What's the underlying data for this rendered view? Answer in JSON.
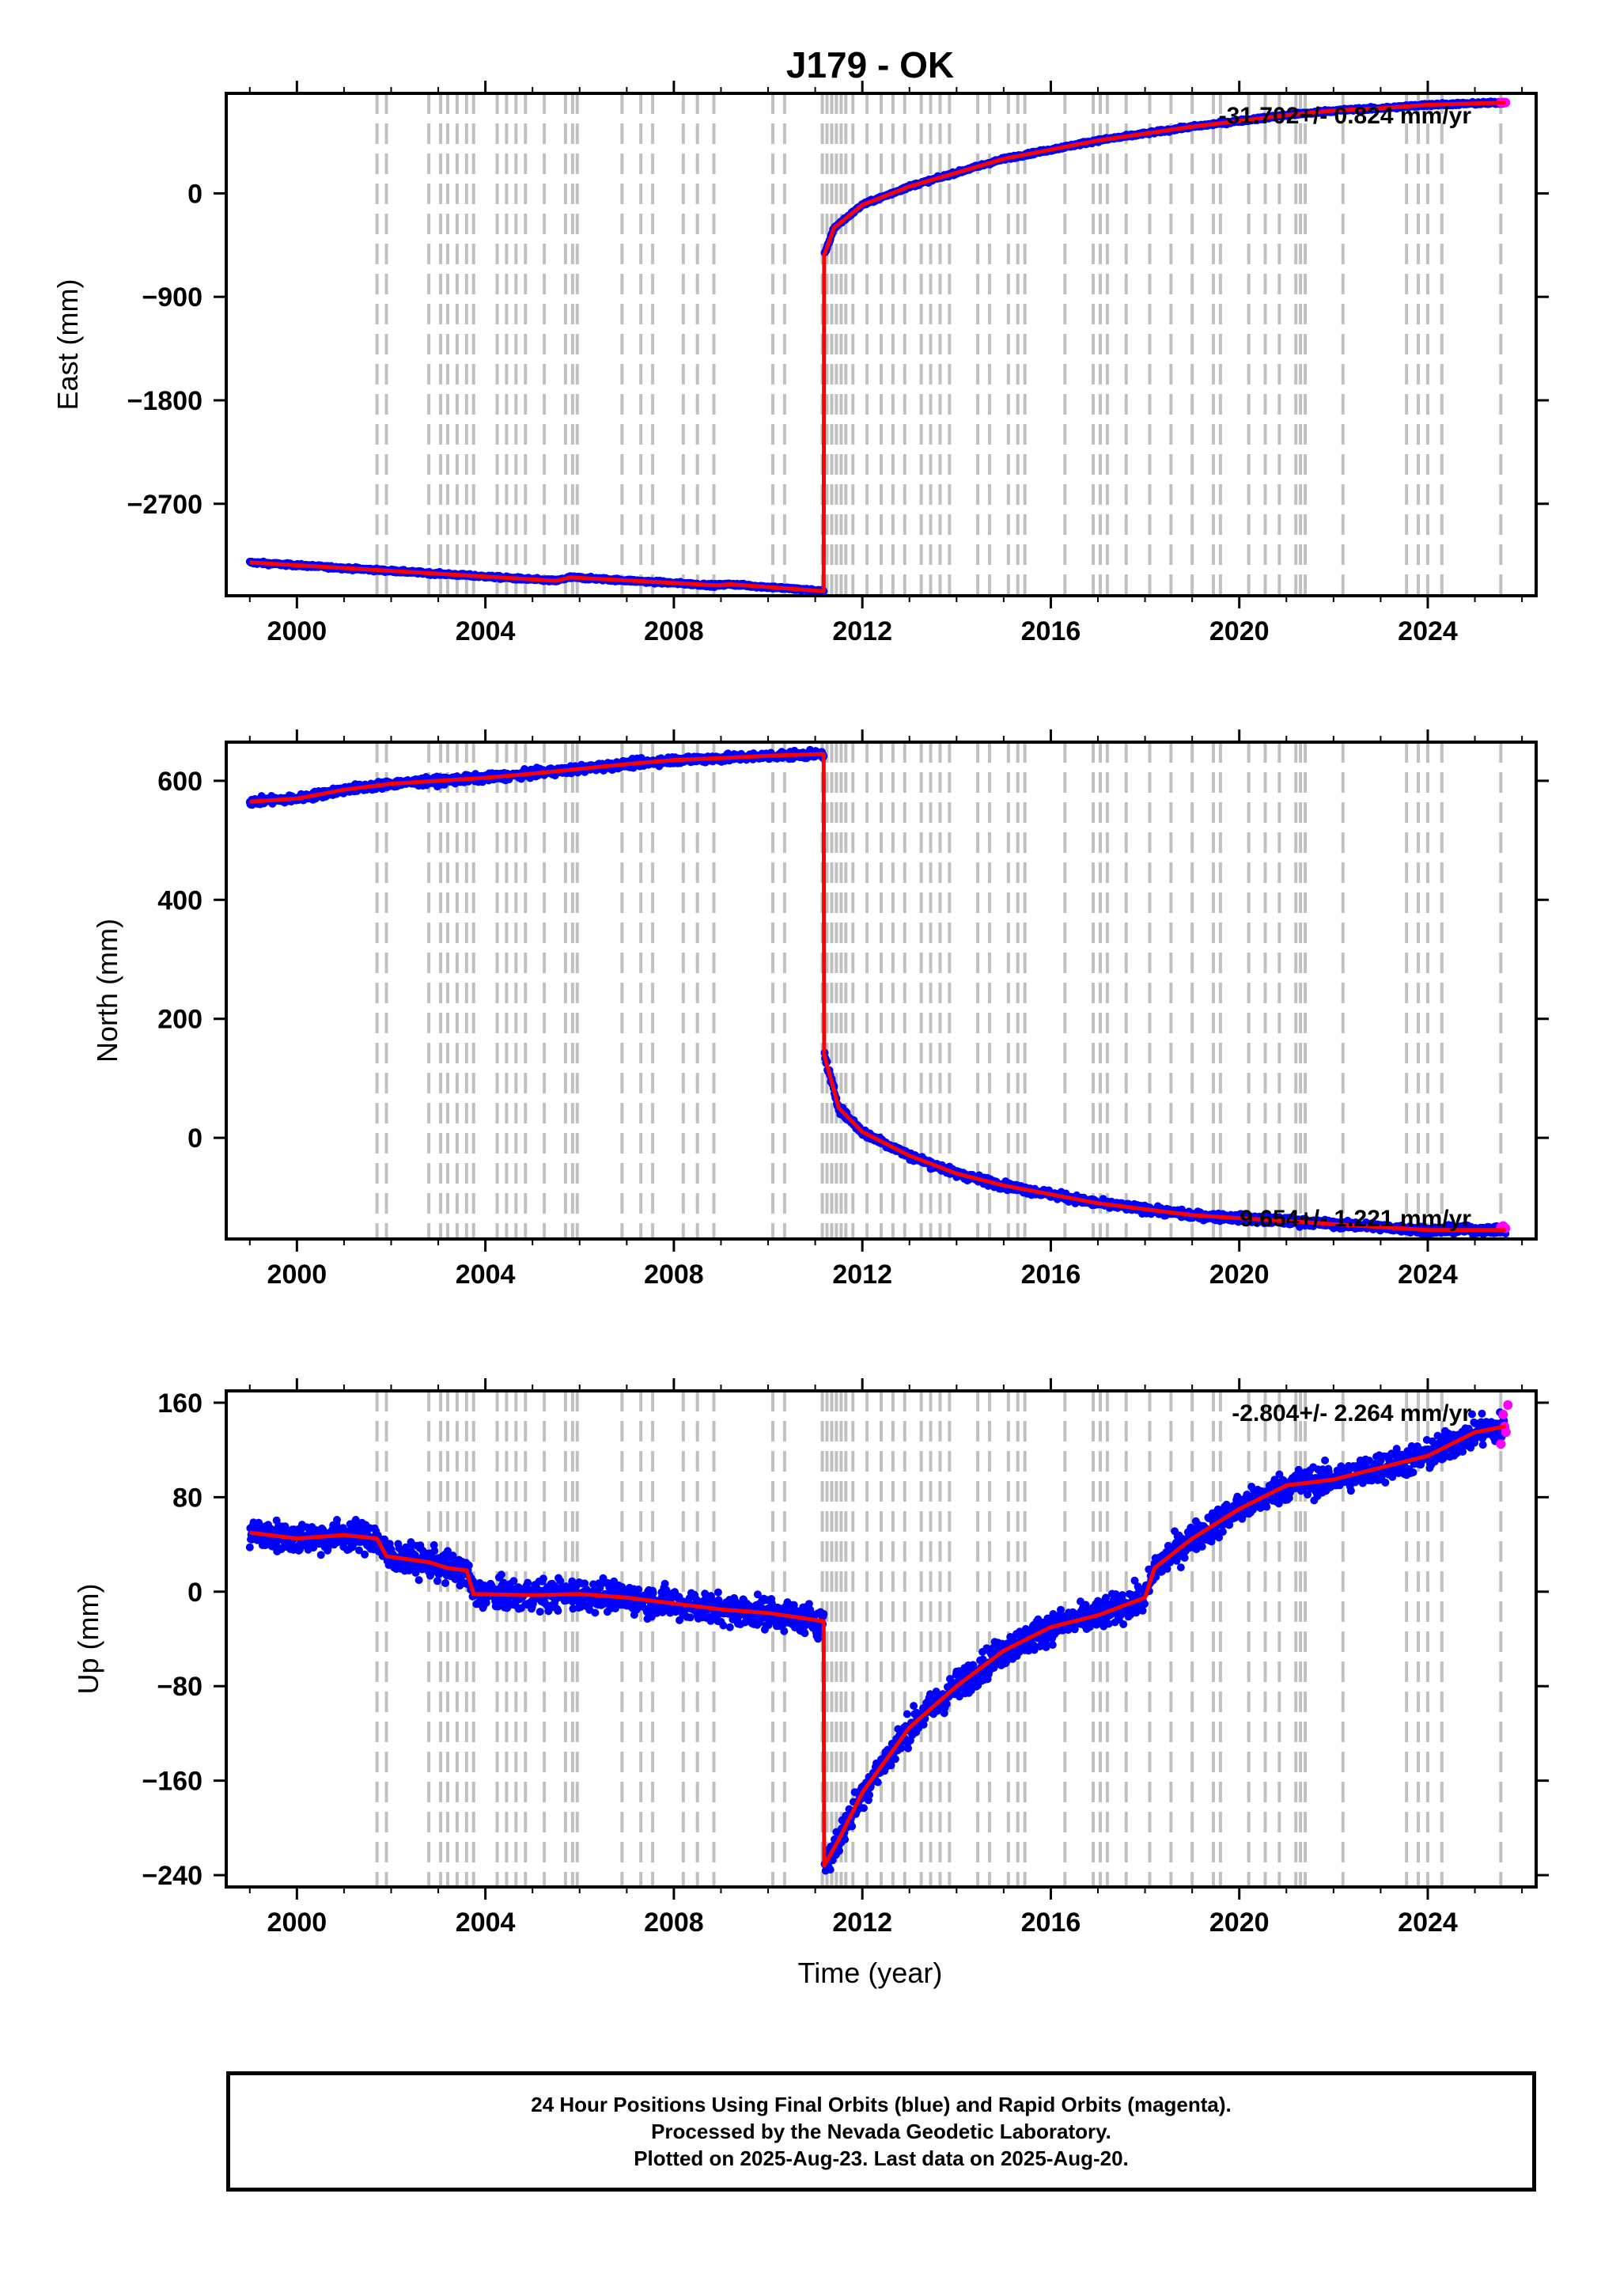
{
  "chart_data": {
    "type": "scatter",
    "title": "J179 - OK",
    "xlabel": "Time (year)",
    "xlim": [
      1998.5,
      2026.3
    ],
    "xticks": [
      2000,
      2004,
      2008,
      2012,
      2016,
      2020,
      2024
    ],
    "event_lines": [
      2001.7,
      2001.9,
      2002.8,
      2003.05,
      2003.2,
      2003.4,
      2003.6,
      2003.75,
      2004.25,
      2004.45,
      2004.65,
      2004.85,
      2005.25,
      2005.7,
      2005.85,
      2005.95,
      2006.9,
      2007.3,
      2007.55,
      2008.2,
      2008.5,
      2008.85,
      2010.1,
      2010.35,
      2011.15,
      2011.25,
      2011.35,
      2011.45,
      2011.55,
      2011.65,
      2011.8,
      2012.1,
      2012.4,
      2012.65,
      2012.9,
      2013.25,
      2013.45,
      2013.65,
      2013.85,
      2014.45,
      2014.7,
      2015.1,
      2015.3,
      2015.45,
      2016.3,
      2016.9,
      2017.05,
      2017.2,
      2017.6,
      2018.1,
      2018.55,
      2019.0,
      2019.45,
      2019.6,
      2020.2,
      2020.55,
      2020.85,
      2021.2,
      2021.3,
      2021.4,
      2022.2,
      2023.55,
      2023.8,
      2024.0,
      2024.3,
      2025.55
    ],
    "panels": [
      {
        "ylabel": "East (mm)",
        "ylim": [
          -3500,
          870
        ],
        "yticks": [
          0,
          -900,
          -1800,
          -2700
        ],
        "annotation": "-31.702+/- 0.824 mm/yr",
        "model_points": [
          [
            1999.0,
            -3210
          ],
          [
            2005.5,
            -3370
          ],
          [
            2005.8,
            -3340
          ],
          [
            2008.9,
            -3410
          ],
          [
            2009.2,
            -3400
          ],
          [
            2011.18,
            -3460
          ],
          [
            2011.19,
            -540
          ],
          [
            2011.4,
            -300
          ],
          [
            2012.0,
            -100
          ],
          [
            2013.0,
            60
          ],
          [
            2014.0,
            180
          ],
          [
            2015.0,
            300
          ],
          [
            2016.0,
            380
          ],
          [
            2017.0,
            460
          ],
          [
            2018.0,
            520
          ],
          [
            2019.0,
            580
          ],
          [
            2020.0,
            630
          ],
          [
            2021.0,
            680
          ],
          [
            2022.0,
            720
          ],
          [
            2023.0,
            740
          ],
          [
            2024.0,
            770
          ],
          [
            2025.65,
            790
          ]
        ],
        "scatter_mm": 12,
        "rapid_points": [
          [
            2025.55,
            790
          ],
          [
            2025.6,
            792
          ],
          [
            2025.65,
            790
          ]
        ]
      },
      {
        "ylabel": "North (mm)",
        "ylim": [
          -170,
          665
        ],
        "yticks": [
          600,
          400,
          200,
          0
        ],
        "annotation": "9.654+/- 1.221 mm/yr",
        "model_points": [
          [
            1999.0,
            565
          ],
          [
            2000.0,
            570
          ],
          [
            2001.0,
            585
          ],
          [
            2002.0,
            595
          ],
          [
            2003.0,
            600
          ],
          [
            2004.0,
            605
          ],
          [
            2005.0,
            612
          ],
          [
            2006.0,
            620
          ],
          [
            2007.0,
            628
          ],
          [
            2008.0,
            635
          ],
          [
            2009.0,
            638
          ],
          [
            2010.0,
            642
          ],
          [
            2011.18,
            645
          ],
          [
            2011.19,
            140
          ],
          [
            2011.5,
            50
          ],
          [
            2012.0,
            10
          ],
          [
            2013.0,
            -30
          ],
          [
            2014.0,
            -60
          ],
          [
            2015.0,
            -80
          ],
          [
            2016.0,
            -95
          ],
          [
            2017.0,
            -110
          ],
          [
            2018.0,
            -120
          ],
          [
            2019.0,
            -130
          ],
          [
            2020.0,
            -135
          ],
          [
            2021.0,
            -140
          ],
          [
            2022.0,
            -145
          ],
          [
            2023.0,
            -150
          ],
          [
            2024.0,
            -155
          ],
          [
            2025.65,
            -155
          ]
        ],
        "scatter_mm": 6,
        "rapid_points": [
          [
            2025.55,
            -150
          ],
          [
            2025.6,
            -148
          ],
          [
            2025.65,
            -152
          ]
        ]
      },
      {
        "ylabel": "Up (mm)",
        "ylim": [
          -250,
          170
        ],
        "yticks": [
          160,
          80,
          0,
          -80,
          -160,
          -240
        ],
        "annotation": "-2.804+/- 2.264 mm/yr",
        "model_points": [
          [
            1999.0,
            50
          ],
          [
            2000.0,
            45
          ],
          [
            2001.0,
            48
          ],
          [
            2001.7,
            45
          ],
          [
            2001.9,
            30
          ],
          [
            2002.8,
            25
          ],
          [
            2003.2,
            20
          ],
          [
            2003.6,
            18
          ],
          [
            2003.75,
            -2
          ],
          [
            2005.0,
            -3
          ],
          [
            2006.0,
            -2
          ],
          [
            2007.0,
            -5
          ],
          [
            2008.0,
            -10
          ],
          [
            2009.0,
            -15
          ],
          [
            2010.0,
            -18
          ],
          [
            2011.18,
            -25
          ],
          [
            2011.19,
            -232
          ],
          [
            2011.5,
            -210
          ],
          [
            2012.0,
            -170
          ],
          [
            2013.0,
            -115
          ],
          [
            2014.0,
            -80
          ],
          [
            2015.0,
            -50
          ],
          [
            2016.0,
            -30
          ],
          [
            2017.0,
            -20
          ],
          [
            2018.0,
            -5
          ],
          [
            2018.2,
            20
          ],
          [
            2019.0,
            45
          ],
          [
            2020.0,
            70
          ],
          [
            2021.0,
            90
          ],
          [
            2022.0,
            95
          ],
          [
            2023.0,
            105
          ],
          [
            2024.0,
            115
          ],
          [
            2025.0,
            135
          ],
          [
            2025.65,
            140
          ]
        ],
        "scatter_mm": 12,
        "rapid_points": [
          [
            2025.55,
            125
          ],
          [
            2025.6,
            150
          ],
          [
            2025.63,
            140
          ],
          [
            2025.66,
            135
          ],
          [
            2025.7,
            158
          ]
        ]
      }
    ]
  },
  "footer": {
    "line1": "24 Hour Positions Using Final Orbits (blue) and Rapid Orbits (magenta).",
    "line2": "Processed by the Nevada Geodetic Laboratory.",
    "line3": "Plotted on 2025-Aug-23. Last data on 2025-Aug-20."
  },
  "colors": {
    "final_orbits": "#0000ff",
    "rapid_orbits": "#ff00ff",
    "model_line": "#ff0000",
    "event_lines": "#c0c0c0"
  }
}
